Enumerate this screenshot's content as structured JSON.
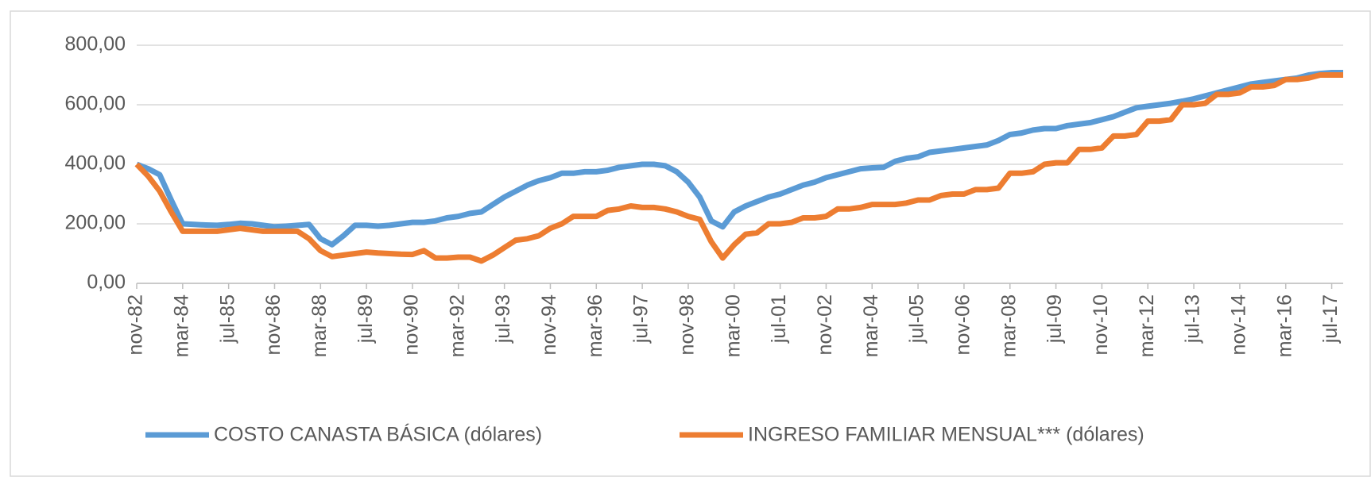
{
  "chart_data": {
    "type": "line",
    "categories": [
      "nov-82",
      null,
      null,
      null,
      "mar-84",
      null,
      null,
      null,
      "jul-85",
      null,
      null,
      null,
      "nov-86",
      null,
      null,
      null,
      "mar-88",
      null,
      null,
      null,
      "jul-89",
      null,
      null,
      null,
      "nov-90",
      null,
      null,
      null,
      "mar-92",
      null,
      null,
      null,
      "jul-93",
      null,
      null,
      null,
      "nov-94",
      null,
      null,
      null,
      "mar-96",
      null,
      null,
      null,
      "jul-97",
      null,
      null,
      null,
      "nov-98",
      null,
      null,
      null,
      "mar-00",
      null,
      null,
      null,
      "jul-01",
      null,
      null,
      null,
      "nov-02",
      null,
      null,
      null,
      "mar-04",
      null,
      null,
      null,
      "jul-05",
      null,
      null,
      null,
      "nov-06",
      null,
      null,
      null,
      "mar-08",
      null,
      null,
      null,
      "jul-09",
      null,
      null,
      null,
      "nov-10",
      null,
      null,
      null,
      "mar-12",
      null,
      null,
      null,
      "jul-13",
      null,
      null,
      null,
      "nov-14",
      null,
      null,
      null,
      "mar-16",
      null,
      null,
      null,
      "jul-17",
      null
    ],
    "series": [
      {
        "name": "COSTO CANASTA BÁSICA (dólares)",
        "color": "#5b9bd5",
        "values": [
          400,
          385,
          365,
          280,
          200,
          198,
          196,
          195,
          198,
          202,
          200,
          195,
          190,
          192,
          195,
          198,
          150,
          130,
          160,
          195,
          195,
          192,
          195,
          200,
          205,
          205,
          210,
          220,
          225,
          235,
          240,
          265,
          290,
          310,
          330,
          345,
          355,
          370,
          370,
          375,
          375,
          380,
          390,
          395,
          400,
          400,
          395,
          375,
          340,
          290,
          210,
          190,
          240,
          260,
          275,
          290,
          300,
          315,
          330,
          340,
          355,
          365,
          375,
          385,
          388,
          390,
          410,
          420,
          425,
          440,
          445,
          450,
          455,
          460,
          465,
          480,
          500,
          505,
          515,
          520,
          520,
          530,
          535,
          540,
          550,
          560,
          575,
          590,
          595,
          600,
          605,
          612,
          620,
          630,
          640,
          650,
          660,
          670,
          675,
          680,
          685,
          690,
          700,
          705,
          708,
          708
        ]
      },
      {
        "name": "INGRESO FAMILIAR MENSUAL*** (dólares)",
        "color": "#ed7d31",
        "values": [
          400,
          360,
          310,
          240,
          175,
          175,
          175,
          175,
          180,
          185,
          180,
          175,
          175,
          175,
          175,
          150,
          110,
          90,
          95,
          100,
          105,
          102,
          100,
          98,
          97,
          110,
          85,
          85,
          88,
          88,
          75,
          95,
          120,
          145,
          150,
          160,
          185,
          200,
          225,
          225,
          225,
          245,
          250,
          260,
          255,
          255,
          250,
          240,
          225,
          215,
          140,
          85,
          130,
          165,
          170,
          200,
          200,
          205,
          220,
          220,
          225,
          250,
          250,
          255,
          265,
          265,
          265,
          270,
          280,
          280,
          295,
          300,
          300,
          315,
          315,
          320,
          370,
          370,
          375,
          400,
          405,
          405,
          450,
          450,
          455,
          495,
          495,
          500,
          545,
          545,
          550,
          600,
          600,
          605,
          635,
          635,
          640,
          660,
          660,
          665,
          685,
          685,
          690,
          700,
          700,
          700
        ]
      }
    ],
    "ylim": [
      0,
      800
    ],
    "yticks": [
      {
        "value": 0,
        "label": "0,00"
      },
      {
        "value": 200,
        "label": "200,00"
      },
      {
        "value": 400,
        "label": "400,00"
      },
      {
        "value": 600,
        "label": "600,00"
      },
      {
        "value": 800,
        "label": "800,00"
      }
    ],
    "grid": true,
    "legend": "bottom"
  }
}
